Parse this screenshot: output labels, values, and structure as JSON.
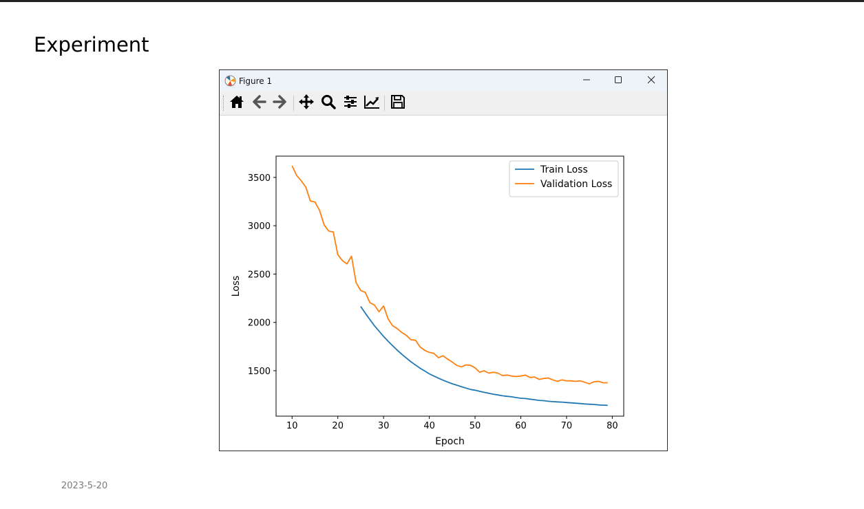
{
  "slide": {
    "title": "Experiment",
    "date": "2023-5-20"
  },
  "window": {
    "title": "Figure 1",
    "icons": {
      "app": "matplotlib-icon",
      "minimize": "minimize-icon",
      "maximize": "maximize-icon",
      "close": "close-icon"
    }
  },
  "toolbar": {
    "buttons": [
      "home-icon",
      "back-arrow-icon",
      "forward-arrow-icon",
      "pan-move-icon",
      "zoom-magnifier-icon",
      "configure-subplots-icon",
      "edit-axis-icon",
      "save-disk-icon"
    ]
  },
  "chart_data": {
    "type": "line",
    "title": "",
    "xlabel": "Epoch",
    "ylabel": "Loss",
    "xlim": [
      6.5,
      82.5
    ],
    "ylim": [
      1030,
      3720
    ],
    "xticks": [
      10,
      20,
      30,
      40,
      50,
      60,
      70,
      80
    ],
    "yticks": [
      1500,
      2000,
      2500,
      3000,
      3500
    ],
    "grid": false,
    "legend_position": "top-right",
    "series": [
      {
        "name": "Train Loss",
        "color": "#1f77b4",
        "x": [
          25,
          26,
          27,
          28,
          29,
          30,
          31,
          32,
          33,
          34,
          35,
          36,
          37,
          38,
          39,
          40,
          41,
          42,
          43,
          44,
          45,
          46,
          47,
          48,
          49,
          50,
          51,
          52,
          53,
          54,
          55,
          56,
          57,
          58,
          59,
          60,
          61,
          62,
          63,
          64,
          65,
          66,
          67,
          68,
          69,
          70,
          71,
          72,
          73,
          74,
          75,
          76,
          77,
          78,
          79
        ],
        "y": [
          2165,
          2095,
          2030,
          1965,
          1910,
          1855,
          1805,
          1758,
          1712,
          1670,
          1630,
          1592,
          1558,
          1525,
          1497,
          1468,
          1445,
          1423,
          1402,
          1383,
          1365,
          1350,
          1335,
          1320,
          1306,
          1298,
          1287,
          1276,
          1266,
          1257,
          1249,
          1241,
          1235,
          1230,
          1222,
          1215,
          1212,
          1206,
          1200,
          1193,
          1190,
          1184,
          1180,
          1177,
          1175,
          1171,
          1167,
          1164,
          1160,
          1156,
          1153,
          1151,
          1146,
          1144,
          1142
        ]
      },
      {
        "name": "Validation Loss",
        "color": "#ff7f0e",
        "x": [
          10,
          11,
          12,
          13,
          14,
          15,
          16,
          17,
          18,
          19,
          20,
          21,
          22,
          23,
          24,
          25,
          26,
          27,
          28,
          29,
          30,
          31,
          32,
          33,
          34,
          35,
          36,
          37,
          38,
          39,
          40,
          41,
          42,
          43,
          44,
          45,
          46,
          47,
          48,
          49,
          50,
          51,
          52,
          53,
          54,
          55,
          56,
          57,
          58,
          59,
          60,
          61,
          62,
          63,
          64,
          65,
          66,
          67,
          68,
          69,
          70,
          71,
          72,
          73,
          74,
          75,
          76,
          77,
          78,
          79
        ],
        "y": [
          3620,
          3520,
          3465,
          3400,
          3255,
          3245,
          3160,
          3010,
          2945,
          2935,
          2700,
          2640,
          2605,
          2685,
          2410,
          2330,
          2310,
          2205,
          2180,
          2110,
          2170,
          2035,
          1965,
          1935,
          1895,
          1865,
          1820,
          1815,
          1745,
          1710,
          1690,
          1680,
          1635,
          1655,
          1620,
          1590,
          1555,
          1540,
          1560,
          1555,
          1530,
          1485,
          1500,
          1475,
          1485,
          1475,
          1450,
          1455,
          1445,
          1440,
          1445,
          1455,
          1430,
          1435,
          1410,
          1420,
          1425,
          1405,
          1390,
          1405,
          1395,
          1395,
          1390,
          1395,
          1380,
          1365,
          1385,
          1390,
          1375,
          1375
        ]
      }
    ]
  }
}
